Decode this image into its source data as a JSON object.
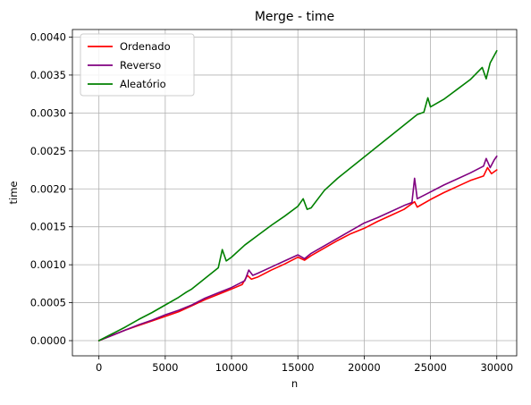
{
  "chart_data": {
    "type": "line",
    "title": "Merge - time",
    "xlabel": "n",
    "ylabel": "time",
    "xlim": [
      -2000,
      31500
    ],
    "ylim": [
      -0.0002,
      0.0041
    ],
    "xticks": [
      0,
      5000,
      10000,
      15000,
      20000,
      25000,
      30000
    ],
    "xtick_labels": [
      "0",
      "5000",
      "10000",
      "15000",
      "20000",
      "25000",
      "30000"
    ],
    "yticks": [
      0.0,
      0.0005,
      0.001,
      0.0015,
      0.002,
      0.0025,
      0.003,
      0.0035,
      0.004
    ],
    "ytick_labels": [
      "0.0000",
      "0.0005",
      "0.0010",
      "0.0015",
      "0.0020",
      "0.0025",
      "0.0030",
      "0.0035",
      "0.0040"
    ],
    "grid": true,
    "legend_position": "top-left",
    "series": [
      {
        "name": "Ordenado",
        "color": "#ff0000",
        "x": [
          0,
          1000,
          2000,
          3000,
          4000,
          5000,
          6000,
          7000,
          8000,
          9000,
          10000,
          10800,
          11200,
          11500,
          12000,
          13000,
          14000,
          15000,
          15500,
          16000,
          17000,
          18000,
          19000,
          20000,
          21000,
          22000,
          23000,
          23800,
          24000,
          25000,
          26000,
          27000,
          28000,
          29000,
          29300,
          29600,
          30000
        ],
        "y": [
          0.0,
          7e-05,
          0.00014,
          0.0002,
          0.00026,
          0.00032,
          0.00038,
          0.00046,
          0.00054,
          0.00061,
          0.00068,
          0.00074,
          0.00086,
          0.00081,
          0.00084,
          0.00093,
          0.00101,
          0.0011,
          0.00106,
          0.00112,
          0.00122,
          0.00132,
          0.00141,
          0.00148,
          0.00157,
          0.00165,
          0.00173,
          0.00183,
          0.00176,
          0.00186,
          0.00195,
          0.00203,
          0.00211,
          0.00217,
          0.00228,
          0.0022,
          0.00225
        ]
      },
      {
        "name": "Reverso",
        "color": "#800080",
        "x": [
          0,
          1000,
          2000,
          3000,
          4000,
          5000,
          6000,
          7000,
          8000,
          9000,
          10000,
          11000,
          11300,
          11600,
          12000,
          13000,
          14000,
          15000,
          15500,
          16000,
          17000,
          18000,
          19000,
          20000,
          21000,
          22000,
          23000,
          23600,
          23800,
          24000,
          25000,
          26000,
          27000,
          28000,
          29000,
          29200,
          29500,
          29800,
          30000
        ],
        "y": [
          0.0,
          7e-05,
          0.00014,
          0.00021,
          0.00027,
          0.00034,
          0.0004,
          0.00047,
          0.00056,
          0.00063,
          0.0007,
          0.00079,
          0.00093,
          0.00086,
          0.00089,
          0.00097,
          0.00105,
          0.00113,
          0.00108,
          0.00115,
          0.00125,
          0.00135,
          0.00145,
          0.00155,
          0.00162,
          0.0017,
          0.00178,
          0.00182,
          0.00214,
          0.00187,
          0.00196,
          0.00205,
          0.00213,
          0.00221,
          0.0023,
          0.0024,
          0.00228,
          0.00238,
          0.00243
        ]
      },
      {
        "name": "Aleatório",
        "color": "#008000",
        "x": [
          0,
          1000,
          2000,
          3000,
          4000,
          5000,
          6000,
          6600,
          7000,
          8000,
          9000,
          9300,
          9600,
          10000,
          11000,
          12000,
          13000,
          14000,
          15000,
          15400,
          15700,
          16000,
          17000,
          18000,
          19000,
          20000,
          21000,
          22000,
          23000,
          24000,
          24500,
          24800,
          25000,
          26000,
          27000,
          28000,
          28900,
          29200,
          29500,
          30000
        ],
        "y": [
          0.0,
          9e-05,
          0.00018,
          0.00028,
          0.00037,
          0.00047,
          0.00057,
          0.00064,
          0.00068,
          0.00082,
          0.00096,
          0.0012,
          0.00105,
          0.0011,
          0.00126,
          0.00139,
          0.00152,
          0.00164,
          0.00177,
          0.00187,
          0.00173,
          0.00175,
          0.00198,
          0.00214,
          0.00228,
          0.00242,
          0.00256,
          0.0027,
          0.00284,
          0.00298,
          0.00301,
          0.0032,
          0.00308,
          0.00318,
          0.00331,
          0.00344,
          0.0036,
          0.00345,
          0.00366,
          0.00382
        ]
      }
    ]
  }
}
